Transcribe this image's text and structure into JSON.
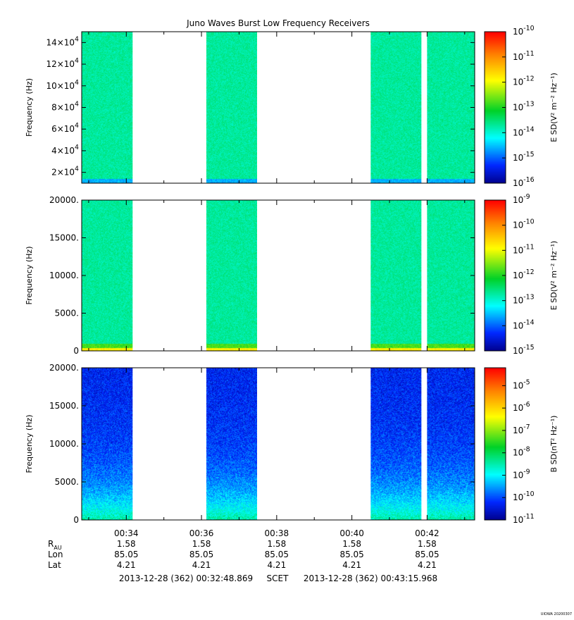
{
  "title": "Juno Waves Burst Low Frequency Receivers",
  "chart_data": [
    {
      "type": "heatmap",
      "ylabel": "Frequency (Hz)",
      "ylim": [
        10000,
        150000
      ],
      "yticks": [
        {
          "v": 20000,
          "m": "2×10",
          "e": "4"
        },
        {
          "v": 40000,
          "m": "4×10",
          "e": "4"
        },
        {
          "v": 60000,
          "m": "6×10",
          "e": "4"
        },
        {
          "v": 80000,
          "m": "8×10",
          "e": "4"
        },
        {
          "v": 100000,
          "m": "10×10",
          "e": "4"
        },
        {
          "v": 120000,
          "m": "12×10",
          "e": "4"
        },
        {
          "v": 140000,
          "m": "14×10",
          "e": "4"
        }
      ],
      "colorbar": {
        "label": "E SD(V² m⁻² Hz⁻¹)",
        "range": [
          -16,
          -10
        ],
        "ticks": [
          {
            "m": "10",
            "e": "-10"
          },
          {
            "m": "10",
            "e": "-11"
          },
          {
            "m": "10",
            "e": "-12"
          },
          {
            "m": "10",
            "e": "-13"
          },
          {
            "m": "10",
            "e": "-14"
          },
          {
            "m": "10",
            "e": "-15"
          },
          {
            "m": "10",
            "e": "-16"
          }
        ]
      },
      "intensity_model": "green (~1e-13.5) across band, cyan/blue at lowest frequencies"
    },
    {
      "type": "heatmap",
      "ylabel": "Frequency (Hz)",
      "ylim": [
        0,
        20000
      ],
      "yticks": [
        {
          "v": 0,
          "m": "0",
          "e": ""
        },
        {
          "v": 5000,
          "m": "5000.",
          "e": ""
        },
        {
          "v": 10000,
          "m": "10000.",
          "e": ""
        },
        {
          "v": 15000,
          "m": "15000.",
          "e": ""
        },
        {
          "v": 20000,
          "m": "20000.",
          "e": ""
        }
      ],
      "colorbar": {
        "label": "E SD(V² m⁻² Hz⁻¹)",
        "range": [
          -15,
          -9
        ],
        "ticks": [
          {
            "m": "10",
            "e": "-9"
          },
          {
            "m": "10",
            "e": "-10"
          },
          {
            "m": "10",
            "e": "-11"
          },
          {
            "m": "10",
            "e": "-12"
          },
          {
            "m": "10",
            "e": "-13"
          },
          {
            "m": "10",
            "e": "-14"
          },
          {
            "m": "10",
            "e": "-15"
          }
        ]
      },
      "intensity_model": "cyan-green (~1e-12.8) with yellow/orange band below ~1000 Hz"
    },
    {
      "type": "heatmap",
      "ylabel": "Frequency (Hz)",
      "ylim": [
        0,
        20000
      ],
      "yticks": [
        {
          "v": 0,
          "m": "0",
          "e": ""
        },
        {
          "v": 5000,
          "m": "5000.",
          "e": ""
        },
        {
          "v": 10000,
          "m": "10000.",
          "e": ""
        },
        {
          "v": 15000,
          "m": "15000.",
          "e": ""
        },
        {
          "v": 20000,
          "m": "20000.",
          "e": ""
        }
      ],
      "colorbar": {
        "label": "B SD(nT² Hz⁻¹)",
        "range": [
          -11,
          -4.2
        ],
        "ticks": [
          {
            "m": "10",
            "e": "-5"
          },
          {
            "m": "10",
            "e": "-6"
          },
          {
            "m": "10",
            "e": "-7"
          },
          {
            "m": "10",
            "e": "-8"
          },
          {
            "m": "10",
            "e": "-9"
          },
          {
            "m": "10",
            "e": "-10"
          },
          {
            "m": "10",
            "e": "-11"
          }
        ]
      },
      "intensity_model": "blue (~1e-10.3) at high frequency grading to cyan/green below ~5000 Hz"
    }
  ],
  "time_axis": {
    "start": "00:32:48.869",
    "end": "00:43:15.968",
    "start_minutes": 32.8145,
    "end_minutes": 43.2661,
    "major_ticks": [
      "00:34",
      "00:36",
      "00:38",
      "00:40",
      "00:42"
    ],
    "major_tick_minutes": [
      34,
      36,
      38,
      40,
      42
    ],
    "minor_tick_minutes": [
      33,
      35,
      37,
      39,
      41,
      43
    ],
    "data_intervals_minutes": [
      [
        32.82,
        34.16
      ],
      [
        36.13,
        37.48
      ],
      [
        40.5,
        41.85
      ],
      [
        42.0,
        43.33
      ]
    ]
  },
  "ephemeris": {
    "rows": [
      {
        "label": "R",
        "sub": "AU",
        "values": [
          "1.58",
          "1.58",
          "1.58",
          "1.58",
          "1.58"
        ]
      },
      {
        "label": "Lon",
        "sub": "",
        "values": [
          "85.05",
          "85.05",
          "85.05",
          "85.05",
          "85.05"
        ]
      },
      {
        "label": "Lat",
        "sub": "",
        "values": [
          "4.21",
          "4.21",
          "4.21",
          "4.21",
          "4.21"
        ]
      }
    ]
  },
  "footer": {
    "start": "2013-12-28 (362) 00:32:48.869",
    "scet": "SCET",
    "end": "2013-12-28 (362) 00:43:15.968"
  },
  "stamp": "UIOWA 20200307"
}
